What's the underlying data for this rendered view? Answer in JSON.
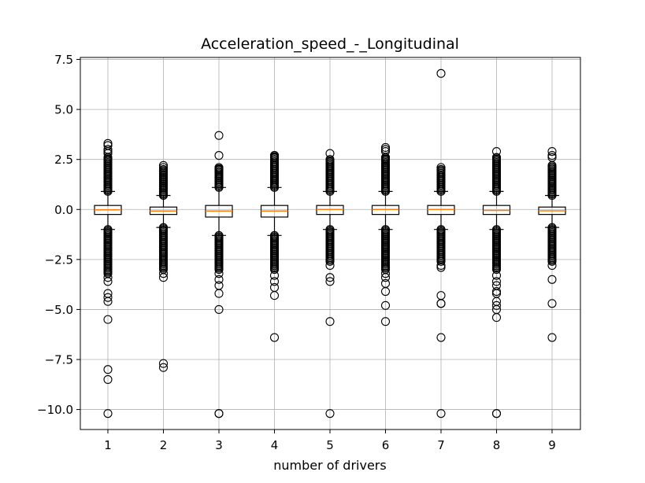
{
  "chart_data": {
    "type": "box",
    "title": "Acceleration_speed_-_Longitudinal",
    "xlabel": "number of drivers",
    "ylabel": "",
    "ylim": [
      -11.0,
      7.6
    ],
    "grid": true,
    "median_color": "#ff7f0e",
    "categories": [
      "1",
      "2",
      "3",
      "4",
      "5",
      "6",
      "7",
      "8",
      "9"
    ],
    "yticks": [
      7.5,
      5.0,
      2.5,
      0.0,
      -2.5,
      -5.0,
      -7.5,
      -10.0
    ],
    "ytick_labels": [
      "7.5",
      "5.0",
      "2.5",
      "0.0",
      "−2.5",
      "−5.0",
      "−7.5",
      "−10.0"
    ],
    "boxes": [
      {
        "q1": -0.25,
        "median": -0.02,
        "q3": 0.2,
        "whisker_low": -1.0,
        "whisker_high": 0.9,
        "dense_high": [
          0.9,
          2.6
        ],
        "dense_low": [
          -1.0,
          -3.2
        ],
        "fliers": [
          3.3,
          3.2,
          3.0,
          2.9,
          2.8,
          -3.4,
          -3.6,
          -4.2,
          -4.4,
          -4.6,
          -5.5,
          -8.0,
          -8.5,
          -10.2
        ]
      },
      {
        "q1": -0.25,
        "median": -0.08,
        "q3": 0.12,
        "whisker_low": -0.9,
        "whisker_high": 0.7,
        "dense_high": [
          0.7,
          2.0
        ],
        "dense_low": [
          -0.9,
          -3.0
        ],
        "fliers": [
          2.2,
          2.1,
          -3.2,
          -3.4,
          -7.7,
          -7.9
        ]
      },
      {
        "q1": -0.38,
        "median": -0.08,
        "q3": 0.2,
        "whisker_low": -1.3,
        "whisker_high": 1.1,
        "dense_high": [
          1.1,
          2.1
        ],
        "dense_low": [
          -1.3,
          -3.0
        ],
        "fliers": [
          3.7,
          2.7,
          2.0,
          -3.2,
          -3.5,
          -3.8,
          -4.2,
          -5.0,
          -10.2,
          -10.2
        ]
      },
      {
        "q1": -0.38,
        "median": -0.08,
        "q3": 0.2,
        "whisker_low": -1.3,
        "whisker_high": 1.1,
        "dense_high": [
          1.1,
          2.7
        ],
        "dense_low": [
          -1.3,
          -3.0
        ],
        "fliers": [
          2.7,
          2.6,
          -3.3,
          -3.6,
          -3.9,
          -4.3,
          -6.4
        ]
      },
      {
        "q1": -0.25,
        "median": 0.0,
        "q3": 0.2,
        "whisker_low": -1.0,
        "whisker_high": 0.9,
        "dense_high": [
          0.9,
          2.5
        ],
        "dense_low": [
          -1.0,
          -2.6
        ],
        "fliers": [
          2.8,
          -2.8,
          -3.4,
          -3.6,
          -5.6,
          -10.2
        ]
      },
      {
        "q1": -0.25,
        "median": 0.0,
        "q3": 0.2,
        "whisker_low": -1.0,
        "whisker_high": 0.9,
        "dense_high": [
          0.9,
          2.6
        ],
        "dense_low": [
          -1.0,
          -3.0
        ],
        "fliers": [
          3.1,
          3.0,
          2.9,
          2.6,
          2.5,
          -3.2,
          -3.4,
          -3.7,
          -4.1,
          -4.8,
          -5.6
        ]
      },
      {
        "q1": -0.25,
        "median": 0.0,
        "q3": 0.2,
        "whisker_low": -1.0,
        "whisker_high": 0.9,
        "dense_high": [
          0.9,
          2.0
        ],
        "dense_low": [
          -1.0,
          -2.6
        ],
        "fliers": [
          6.8,
          2.1,
          2.0,
          -2.8,
          -2.9,
          -4.3,
          -4.7,
          -4.7,
          -6.4,
          -10.2
        ]
      },
      {
        "q1": -0.25,
        "median": -0.05,
        "q3": 0.2,
        "whisker_low": -1.0,
        "whisker_high": 0.9,
        "dense_high": [
          0.9,
          2.6
        ],
        "dense_low": [
          -1.0,
          -3.0
        ],
        "fliers": [
          2.9,
          2.6,
          -3.3,
          -3.6,
          -3.8,
          -4.1,
          -4.2,
          -4.6,
          -4.8,
          -5.0,
          -5.4,
          -10.2,
          -10.2
        ]
      },
      {
        "q1": -0.25,
        "median": -0.07,
        "q3": 0.12,
        "whisker_low": -0.9,
        "whisker_high": 0.7,
        "dense_high": [
          0.7,
          2.2
        ],
        "dense_low": [
          -0.9,
          -2.6
        ],
        "fliers": [
          2.9,
          2.7,
          2.6,
          -2.8,
          -3.5,
          -4.7,
          -6.4
        ]
      }
    ]
  }
}
